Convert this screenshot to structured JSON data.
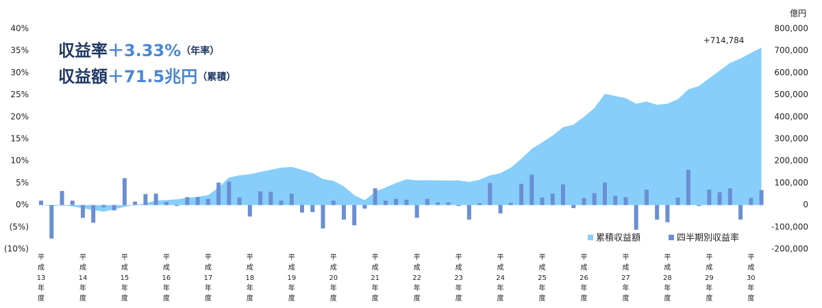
{
  "chart_data": {
    "type": "bar-area",
    "y2_unit_label": "億円",
    "annotations": [
      {
        "label": "収益率",
        "value": "＋3.33%",
        "note": "（年率）"
      },
      {
        "label": "収益額",
        "value": "＋71.5兆円",
        "note": "（累積）"
      }
    ],
    "categories": [
      "平成13年度",
      null,
      null,
      null,
      "平成14年度",
      null,
      null,
      null,
      "平成15年度",
      null,
      null,
      null,
      "平成16年度",
      null,
      null,
      null,
      "平成17年度",
      null,
      null,
      null,
      "平成18年度",
      null,
      null,
      null,
      "平成19年度",
      null,
      null,
      null,
      "平成20年度",
      null,
      null,
      null,
      "平成21年度",
      null,
      null,
      null,
      "平成22年度",
      null,
      null,
      null,
      "平成23年度",
      null,
      null,
      null,
      "平成24年度",
      null,
      null,
      null,
      "平成25年度",
      null,
      null,
      null,
      "平成26年度",
      null,
      null,
      null,
      "平成27年度",
      null,
      null,
      null,
      "平成28年度",
      null,
      null,
      null,
      "平成29年度",
      null,
      null,
      null,
      "平成30年度",
      null
    ],
    "series": [
      {
        "name": "累積収益額",
        "type": "area",
        "axis": "y2",
        "color": "#87cefa",
        "values": [
          1000,
          -6000,
          -2000,
          -6000,
          -14000,
          -23000,
          -30000,
          -20000,
          -8000,
          0,
          8000,
          20000,
          23000,
          26000,
          32000,
          38000,
          45000,
          80000,
          125000,
          135000,
          140000,
          150000,
          160000,
          170000,
          173000,
          160000,
          145000,
          118000,
          110000,
          85000,
          45000,
          22000,
          60000,
          80000,
          100000,
          117000,
          112000,
          113000,
          112000,
          111000,
          112000,
          105000,
          115000,
          135000,
          145000,
          170000,
          210000,
          255000,
          285000,
          315000,
          353000,
          365000,
          400000,
          440000,
          505000,
          495000,
          485000,
          460000,
          470000,
          455000,
          460000,
          480000,
          525000,
          540000,
          575000,
          610000,
          645000,
          665000,
          690000,
          714784
        ],
        "value_labels": [
          null,
          null,
          null,
          null,
          null,
          null,
          null,
          null,
          null,
          null,
          null,
          null,
          null,
          null,
          null,
          null,
          null,
          null,
          null,
          null,
          null,
          null,
          null,
          null,
          null,
          null,
          null,
          null,
          null,
          null,
          null,
          null,
          null,
          null,
          null,
          null,
          null,
          null,
          null,
          null,
          null,
          null,
          null,
          null,
          null,
          null,
          null,
          null,
          null,
          null,
          null,
          null,
          null,
          null,
          null,
          null,
          null,
          null,
          null,
          null,
          null,
          null,
          null,
          null,
          null,
          null,
          null,
          null,
          null,
          "+714,784"
        ]
      },
      {
        "name": "四半期別収益率",
        "type": "bar",
        "axis": "y",
        "color": "#6a8fd2",
        "values": [
          1.0,
          -7.6,
          3.2,
          1.0,
          -2.9,
          -4.0,
          -0.5,
          -1.2,
          6.1,
          0.8,
          2.5,
          2.6,
          0.7,
          -0.2,
          1.8,
          1.8,
          1.4,
          5.1,
          5.3,
          1.7,
          -2.6,
          3.1,
          3.0,
          1.0,
          2.6,
          -1.7,
          -1.6,
          -5.3,
          1.0,
          -3.3,
          -4.6,
          -0.8,
          3.8,
          1.0,
          1.4,
          1.2,
          -2.9,
          1.4,
          0.6,
          0.6,
          -0.2,
          -3.3,
          0.4,
          5.0,
          -1.9,
          0.5,
          4.8,
          6.9,
          1.7,
          2.6,
          4.7,
          -0.7,
          1.6,
          2.7,
          5.1,
          2.1,
          1.8,
          -5.6,
          3.5,
          -3.3,
          -3.9,
          1.7,
          8.0,
          -0.2,
          3.5,
          2.9,
          3.8,
          -3.3,
          1.6,
          3.4
        ]
      }
    ],
    "ylim": [
      -10,
      40
    ],
    "yticks": [
      {
        "value": -10,
        "label": "(10%)"
      },
      {
        "value": -5,
        "label": "(5%)"
      },
      {
        "value": 0,
        "label": "0%"
      },
      {
        "value": 5,
        "label": "5%"
      },
      {
        "value": 10,
        "label": "10%"
      },
      {
        "value": 15,
        "label": "15%"
      },
      {
        "value": 20,
        "label": "20%"
      },
      {
        "value": 25,
        "label": "25%"
      },
      {
        "value": 30,
        "label": "30%"
      },
      {
        "value": 35,
        "label": "35%"
      },
      {
        "value": 40,
        "label": "40%"
      }
    ],
    "y2lim": [
      -200000,
      800000
    ],
    "y2ticks": [
      {
        "value": -200000,
        "label": "-200,000"
      },
      {
        "value": -100000,
        "label": "-100,000"
      },
      {
        "value": 0,
        "label": "0"
      },
      {
        "value": 100000,
        "label": "100,000"
      },
      {
        "value": 200000,
        "label": "200,000"
      },
      {
        "value": 300000,
        "label": "300,000"
      },
      {
        "value": 400000,
        "label": "400,000"
      },
      {
        "value": 500000,
        "label": "500,000"
      },
      {
        "value": 600000,
        "label": "600,000"
      },
      {
        "value": 700000,
        "label": "700,000"
      },
      {
        "value": 800000,
        "label": "800,000"
      }
    ],
    "grid": false,
    "legend": "bottom-right"
  }
}
